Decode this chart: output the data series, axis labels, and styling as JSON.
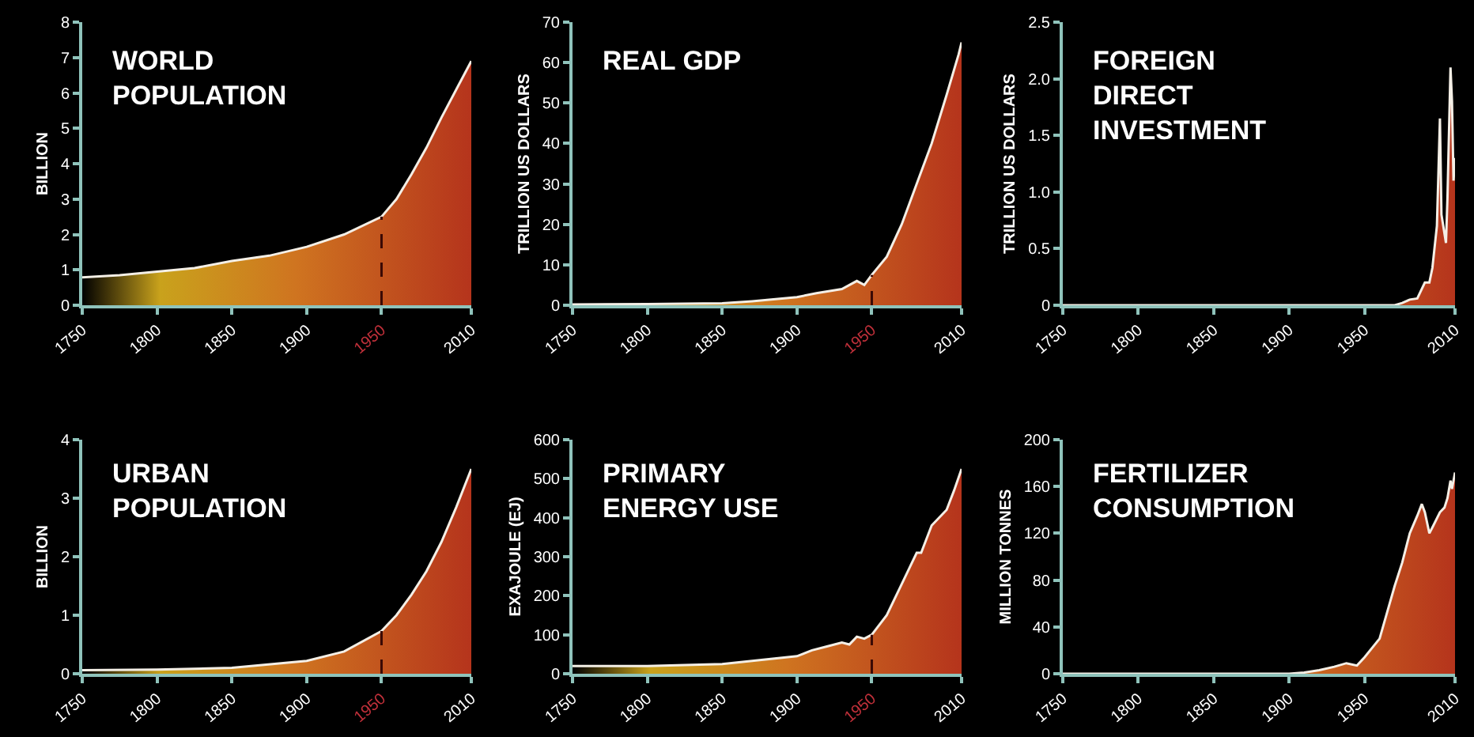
{
  "chart_data": [
    {
      "type": "area",
      "title": "WORLD\nPOPULATION",
      "ylabel": "BILLION",
      "xlim": [
        1750,
        2010
      ],
      "xticks": [
        1750,
        1800,
        1850,
        1900,
        1950,
        2010
      ],
      "ylim": [
        0,
        8
      ],
      "yticks": [
        0,
        1,
        2,
        3,
        4,
        5,
        6,
        7,
        8
      ],
      "ref_lines": [
        {
          "axis": "x",
          "value": 1950,
          "line_style": "dashed",
          "color": "#3a0a05"
        }
      ],
      "series": [
        {
          "color": "#b5341c",
          "x": [
            1750,
            1775,
            1800,
            1825,
            1850,
            1875,
            1900,
            1925,
            1950,
            1960,
            1970,
            1980,
            1990,
            2000,
            2010
          ],
          "values": [
            0.79,
            0.85,
            0.95,
            1.05,
            1.25,
            1.4,
            1.65,
            2.0,
            2.5,
            3.0,
            3.7,
            4.45,
            5.3,
            6.1,
            6.9
          ]
        }
      ]
    },
    {
      "type": "area",
      "title": "REAL GDP",
      "ylabel": "TRILLION US DOLLARS",
      "xlim": [
        1750,
        2010
      ],
      "xticks": [
        1750,
        1800,
        1850,
        1900,
        1950,
        2010
      ],
      "ylim": [
        0,
        70
      ],
      "yticks": [
        0,
        10,
        20,
        30,
        40,
        50,
        60,
        70
      ],
      "ref_lines": [
        {
          "axis": "x",
          "value": 1950,
          "line_style": "dashed",
          "color": "#3a0a05"
        }
      ],
      "series": [
        {
          "color": "#b5341c",
          "x": [
            1750,
            1800,
            1850,
            1870,
            1900,
            1913,
            1930,
            1940,
            1945,
            1950,
            1960,
            1970,
            1980,
            1990,
            2000,
            2008,
            2010
          ],
          "values": [
            0.2,
            0.3,
            0.5,
            1,
            2,
            3,
            4,
            6,
            5,
            7.5,
            12,
            20,
            30,
            40,
            52,
            62,
            65
          ]
        }
      ]
    },
    {
      "type": "area",
      "title": "FOREIGN\nDIRECT\nINVESTMENT",
      "ylabel": "TRILLION US DOLLARS",
      "xlim": [
        1750,
        2010
      ],
      "xticks": [
        1750,
        1800,
        1850,
        1900,
        1950,
        2010
      ],
      "ylim": [
        0,
        2.5
      ],
      "yticks": [
        {
          "value": 0,
          "label": "0"
        },
        {
          "value": 0.5,
          "label": "0.5"
        },
        {
          "value": 1,
          "label": "1.0"
        },
        {
          "value": 1.5,
          "label": "1.5"
        },
        {
          "value": 2,
          "label": "2.0"
        },
        {
          "value": 2.5,
          "label": "2.5"
        }
      ],
      "series": [
        {
          "color": "#b5341c",
          "x": [
            1750,
            1950,
            1970,
            1975,
            1980,
            1985,
            1990,
            1993,
            1995,
            1998,
            2000,
            2001,
            2004,
            2005,
            2007,
            2008,
            2009,
            2010
          ],
          "values": [
            0,
            0,
            0,
            0.02,
            0.05,
            0.06,
            0.2,
            0.2,
            0.33,
            0.7,
            1.65,
            0.8,
            0.55,
            0.95,
            2.1,
            1.8,
            1.1,
            1.3
          ]
        }
      ]
    },
    {
      "type": "area",
      "title": "URBAN\nPOPULATION",
      "ylabel": "BILLION",
      "xlim": [
        1750,
        2010
      ],
      "xticks": [
        1750,
        1800,
        1850,
        1900,
        1950,
        2010
      ],
      "ylim": [
        0,
        4
      ],
      "yticks": [
        0,
        1,
        2,
        3,
        4
      ],
      "ref_lines": [
        {
          "axis": "x",
          "value": 1950,
          "line_style": "dashed",
          "color": "#3a0a05"
        }
      ],
      "series": [
        {
          "color": "#b5341c",
          "x": [
            1750,
            1800,
            1850,
            1900,
            1925,
            1950,
            1960,
            1970,
            1980,
            1990,
            2000,
            2010
          ],
          "values": [
            0.06,
            0.07,
            0.1,
            0.22,
            0.38,
            0.73,
            1.0,
            1.35,
            1.75,
            2.25,
            2.85,
            3.5
          ]
        }
      ]
    },
    {
      "type": "area",
      "title": "PRIMARY\nENERGY USE",
      "ylabel": "EXAJOULE (EJ)",
      "xlim": [
        1750,
        2010
      ],
      "xticks": [
        1750,
        1800,
        1850,
        1900,
        1950,
        2010
      ],
      "ylim": [
        0,
        600
      ],
      "yticks": [
        0,
        100,
        200,
        300,
        400,
        500,
        600
      ],
      "ref_lines": [
        {
          "axis": "x",
          "value": 1950,
          "line_style": "dashed",
          "color": "#3a0a05"
        }
      ],
      "series": [
        {
          "color": "#b5341c",
          "x": [
            1750,
            1800,
            1850,
            1900,
            1910,
            1920,
            1930,
            1935,
            1940,
            1945,
            1950,
            1960,
            1970,
            1975,
            1980,
            1983,
            1990,
            2000,
            2005,
            2010
          ],
          "values": [
            20,
            20,
            25,
            45,
            60,
            70,
            80,
            75,
            95,
            90,
            100,
            150,
            230,
            270,
            310,
            310,
            380,
            420,
            470,
            525
          ]
        }
      ]
    },
    {
      "type": "area",
      "title": "FERTILIZER\nCONSUMPTION",
      "ylabel": "MILLION TONNES",
      "xlim": [
        1750,
        2010
      ],
      "xticks": [
        1750,
        1800,
        1850,
        1900,
        1950,
        2010
      ],
      "ylim": [
        0,
        200
      ],
      "yticks": [
        0,
        40,
        80,
        120,
        160,
        200
      ],
      "series": [
        {
          "color": "#b5341c",
          "x": [
            1750,
            1900,
            1910,
            1920,
            1930,
            1938,
            1945,
            1950,
            1960,
            1970,
            1975,
            1980,
            1985,
            1988,
            1990,
            1993,
            1995,
            2000,
            2003,
            2005,
            2007,
            2008,
            2010
          ],
          "values": [
            0,
            0,
            1,
            3,
            6,
            9,
            7,
            14,
            30,
            75,
            95,
            120,
            135,
            145,
            138,
            120,
            125,
            138,
            142,
            150,
            165,
            158,
            172
          ]
        }
      ]
    }
  ]
}
